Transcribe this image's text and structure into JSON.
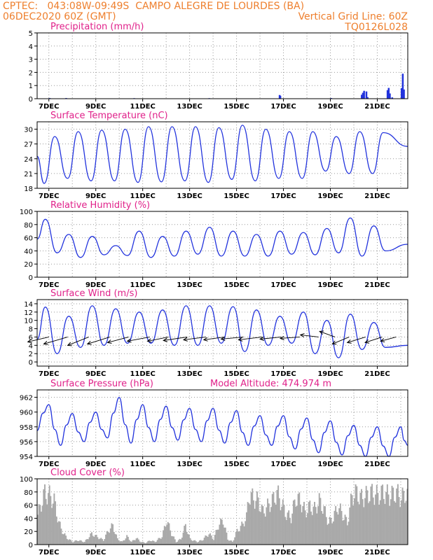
{
  "header": {
    "source": "CPTEC:",
    "coords": "043:08W-09:49S",
    "location": "CAMPO ALEGRE DE LOURDES (BA)",
    "date": "06DEC2020 60Z (GMT)",
    "grid_note": "Vertical Grid Line: 60Z",
    "code": "TQ0126L028"
  },
  "x_ticks": [
    "7DEC",
    "9DEC",
    "11DEC",
    "13DEC",
    "15DEC",
    "17DEC",
    "19DEC",
    "21DEC"
  ],
  "colors": {
    "line": "#2233dd",
    "bar": "#2233dd",
    "cloud": "#a9a9a9",
    "title": "#e0218a",
    "header": "#ee7f2d"
  },
  "chart_data": [
    {
      "type": "bar",
      "title": "Precipitation (mm/h)",
      "x_unit": "days since 6DEC 00Z",
      "ylim": [
        0,
        5
      ],
      "yticks": [
        0,
        1,
        2,
        3,
        4,
        5
      ],
      "x": [
        0.5,
        1.2,
        4.1,
        7.3,
        10.3,
        10.33,
        12.5,
        13.8,
        13.85,
        13.9,
        14.0,
        14.05,
        14.9,
        14.95,
        15.0,
        15.1,
        15.5,
        15.55,
        15.6
      ],
      "values": [
        0.05,
        0.05,
        0.04,
        0.04,
        0.28,
        0.22,
        0.05,
        0.3,
        0.45,
        0.6,
        0.55,
        0.12,
        0.65,
        0.82,
        0.4,
        0.1,
        0.8,
        1.9,
        0.7
      ]
    },
    {
      "type": "line",
      "title": "Surface Temperature (nC)",
      "ylim": [
        18,
        31.5
      ],
      "yticks": [
        18,
        21,
        24,
        27,
        30
      ],
      "mins": [
        19.0,
        20.0,
        19.5,
        19.5,
        19.2,
        19.3,
        19.5,
        19.2,
        19.8,
        19.5,
        20.0,
        20.0,
        21.5,
        21.0,
        21.0
      ],
      "maxs": [
        28.5,
        29.5,
        29.8,
        30.0,
        30.5,
        30.5,
        30.5,
        30.3,
        30.8,
        30.0,
        29.5,
        29.5,
        28.5,
        29.5,
        29.3
      ],
      "start": 24.5,
      "end": 26.5
    },
    {
      "type": "line",
      "title": "Relative Humidity (%)",
      "ylim": [
        0,
        100
      ],
      "yticks": [
        0,
        20,
        40,
        60,
        80,
        100
      ],
      "maxs": [
        88,
        65,
        62,
        48,
        70,
        62,
        70,
        76,
        70,
        65,
        70,
        68,
        74,
        90,
        78
      ],
      "mins": [
        37,
        30,
        34,
        33,
        30,
        32,
        35,
        32,
        32,
        32,
        35,
        34,
        37,
        32,
        40
      ],
      "start": 58,
      "end": 50
    },
    {
      "type": "line",
      "title": "Surface Wind (m/s)",
      "ylim": [
        -1,
        15
      ],
      "yticks": [
        0,
        2,
        4,
        6,
        8,
        10,
        12,
        14
      ],
      "maxs": [
        13.2,
        11.0,
        13.5,
        12.8,
        12.0,
        12.5,
        13.5,
        13.5,
        13.3,
        12.5,
        11.0,
        12.0,
        10.0,
        11.5,
        9.5
      ],
      "mins": [
        2.0,
        3.5,
        4.0,
        4.5,
        4.5,
        4.0,
        4.0,
        4.5,
        2.5,
        4.0,
        4.5,
        2.0,
        1.0,
        3.0,
        3.5
      ],
      "start": 5.5,
      "end": 4.0,
      "barbs": [
        {
          "x": 0.5,
          "dx": -30,
          "dy": 7
        },
        {
          "x": 1.3,
          "dx": -34,
          "dy": 10
        },
        {
          "x": 2.2,
          "dx": -30,
          "dy": 12
        },
        {
          "x": 3.1,
          "dx": -32,
          "dy": 10
        },
        {
          "x": 3.9,
          "dx": -30,
          "dy": 8
        },
        {
          "x": 4.8,
          "dx": -32,
          "dy": 6
        },
        {
          "x": 5.6,
          "dx": -30,
          "dy": 6
        },
        {
          "x": 6.4,
          "dx": -34,
          "dy": 5
        },
        {
          "x": 7.2,
          "dx": -32,
          "dy": 4
        },
        {
          "x": 8.0,
          "dx": -30,
          "dy": 4
        },
        {
          "x": 8.8,
          "dx": -32,
          "dy": 3
        },
        {
          "x": 9.6,
          "dx": -34,
          "dy": 4
        },
        {
          "x": 10.4,
          "dx": -30,
          "dy": 3
        },
        {
          "x": 11.2,
          "dx": -28,
          "dy": 2
        },
        {
          "x": 12.0,
          "dx": -26,
          "dy": -3
        },
        {
          "x": 12.7,
          "dx": -22,
          "dy": -8
        },
        {
          "x": 13.3,
          "dx": -24,
          "dy": 10
        },
        {
          "x": 14.0,
          "dx": -26,
          "dy": 8
        },
        {
          "x": 14.7,
          "dx": -24,
          "dy": 8
        },
        {
          "x": 15.3,
          "dx": -22,
          "dy": 6
        }
      ]
    },
    {
      "type": "line",
      "title": "Surface Pressure (hPa)",
      "annotation": "Model Altitude: 474.974 m",
      "ylim": [
        954,
        963
      ],
      "yticks": [
        954,
        956,
        958,
        960,
        962
      ],
      "start": 957.5,
      "end": 955.5,
      "peaks": [
        961.0,
        959.8,
        960.0,
        962.0,
        961.0,
        960.8,
        960.5,
        960.5,
        960.2,
        959.5,
        959.5,
        959.2,
        958.8,
        958.2,
        958.0,
        958.0
      ],
      "troughs": [
        955.5,
        956.0,
        956.5,
        955.8,
        956.0,
        956.2,
        956.0,
        955.8,
        955.5,
        955.5,
        955.0,
        954.5,
        954.2,
        954.0,
        954.0
      ]
    },
    {
      "type": "bar",
      "title": "Cloud Cover (%)",
      "ylim": [
        0,
        100
      ],
      "yticks": [
        0,
        20,
        40,
        60,
        80,
        100
      ],
      "profile": [
        [
          0.0,
          55
        ],
        [
          0.3,
          95
        ],
        [
          0.5,
          90
        ],
        [
          0.7,
          80
        ],
        [
          0.9,
          40
        ],
        [
          1.1,
          20
        ],
        [
          1.3,
          10
        ],
        [
          1.5,
          5
        ],
        [
          1.7,
          8
        ],
        [
          2.0,
          5
        ],
        [
          2.3,
          20
        ],
        [
          2.5,
          15
        ],
        [
          2.8,
          8
        ],
        [
          3.0,
          25
        ],
        [
          3.2,
          35
        ],
        [
          3.4,
          10
        ],
        [
          3.6,
          5
        ],
        [
          3.8,
          15
        ],
        [
          4.0,
          5
        ],
        [
          4.2,
          12
        ],
        [
          4.4,
          5
        ],
        [
          4.6,
          3
        ],
        [
          4.8,
          8
        ],
        [
          5.0,
          5
        ],
        [
          5.3,
          15
        ],
        [
          5.5,
          45
        ],
        [
          5.7,
          20
        ],
        [
          5.9,
          5
        ],
        [
          6.1,
          10
        ],
        [
          6.3,
          35
        ],
        [
          6.5,
          10
        ],
        [
          6.8,
          5
        ],
        [
          7.0,
          8
        ],
        [
          7.3,
          20
        ],
        [
          7.5,
          10
        ],
        [
          7.7,
          35
        ],
        [
          7.9,
          45
        ],
        [
          8.1,
          10
        ],
        [
          8.3,
          5
        ],
        [
          8.5,
          25
        ],
        [
          8.7,
          35
        ],
        [
          8.9,
          50
        ],
        [
          9.0,
          90
        ],
        [
          9.2,
          85
        ],
        [
          9.4,
          80
        ],
        [
          9.6,
          60
        ],
        [
          9.8,
          70
        ],
        [
          10.0,
          80
        ],
        [
          10.2,
          95
        ],
        [
          10.4,
          75
        ],
        [
          10.6,
          55
        ],
        [
          10.8,
          50
        ],
        [
          11.0,
          85
        ],
        [
          11.2,
          80
        ],
        [
          11.4,
          60
        ],
        [
          11.6,
          70
        ],
        [
          11.8,
          65
        ],
        [
          12.0,
          80
        ],
        [
          12.2,
          65
        ],
        [
          12.4,
          40
        ],
        [
          12.6,
          50
        ],
        [
          12.8,
          70
        ],
        [
          13.0,
          55
        ],
        [
          13.2,
          40
        ],
        [
          13.4,
          90
        ],
        [
          13.6,
          95
        ],
        [
          13.8,
          85
        ],
        [
          14.0,
          90
        ],
        [
          14.2,
          95
        ],
        [
          14.5,
          90
        ],
        [
          14.7,
          95
        ],
        [
          15.0,
          90
        ],
        [
          15.3,
          95
        ],
        [
          15.5,
          85
        ],
        [
          15.7,
          95
        ],
        [
          15.9,
          80
        ]
      ]
    }
  ]
}
